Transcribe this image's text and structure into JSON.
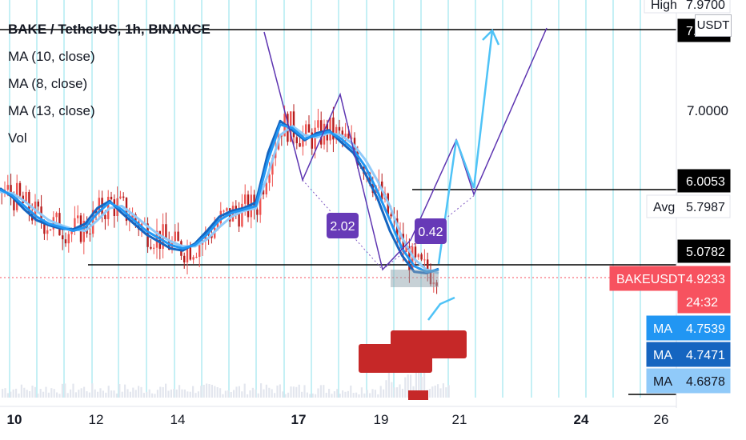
{
  "legend": {
    "title": "BAKE / TetherUS, 1h, BINANCE",
    "ma1": "MA (10, close)",
    "ma2": "MA (8, close)",
    "ma3": "MA (13, close)",
    "vol": "Vol"
  },
  "currency_label": "USDT",
  "chart_data": {
    "type": "line",
    "title": "BAKE / TetherUS, 1h, BINANCE",
    "x_tick_labels": [
      "10",
      "12",
      "14",
      "17",
      "19",
      "21",
      "24",
      "26"
    ],
    "y_tick_labels": [
      "7.0000"
    ],
    "ylim": [
      4.3,
      8.0
    ],
    "price_axis_labels": [
      {
        "name": "High",
        "value": "7.9700",
        "color": "#ffffff",
        "text_color": "#131722"
      },
      {
        "name": "",
        "value": "7.",
        "color": "#000000",
        "text_color": "#ffffff"
      },
      {
        "name": "",
        "value": "6.0053",
        "color": "#000000",
        "text_color": "#ffffff"
      },
      {
        "name": "Avg",
        "value": "5.7987",
        "color": "#ffffff",
        "text_color": "#131722"
      },
      {
        "name": "",
        "value": "5.0782",
        "color": "#000000",
        "text_color": "#ffffff"
      },
      {
        "name": "BAKEUSDT",
        "value": "4.9233",
        "color": "#f7525f",
        "text_color": "#ffffff"
      },
      {
        "name": "",
        "value": "24:32",
        "color": "#f7525f",
        "text_color": "#ffffff"
      },
      {
        "name": "MA",
        "value": "4.7539",
        "color": "#2196f3",
        "text_color": "#ffffff"
      },
      {
        "name": "MA",
        "value": "4.7471",
        "color": "#1565c0",
        "text_color": "#ffffff"
      },
      {
        "name": "MA",
        "value": "4.6878",
        "color": "#90caf9",
        "text_color": "#131722"
      }
    ],
    "pattern_labels": [
      "2.02",
      "0.42"
    ],
    "series": [
      {
        "name": "MA (10, close)",
        "color": "#2196f3",
        "values": [
          5.88,
          5.8,
          5.65,
          5.5,
          5.4,
          5.35,
          5.3,
          5.35,
          5.55,
          5.7,
          5.6,
          5.45,
          5.3,
          5.2,
          5.1,
          5.05,
          5.1,
          5.25,
          5.45,
          5.55,
          5.6,
          5.65,
          6.3,
          6.8,
          6.75,
          6.6,
          6.65,
          6.7,
          6.6,
          6.45,
          6.2,
          5.85,
          5.45,
          5.05,
          4.8,
          4.72,
          4.75
        ]
      },
      {
        "name": "MA (8, close)",
        "color": "#1565c0",
        "values": [
          5.9,
          5.78,
          5.6,
          5.45,
          5.38,
          5.33,
          5.32,
          5.4,
          5.62,
          5.72,
          5.55,
          5.4,
          5.25,
          5.15,
          5.05,
          5.02,
          5.12,
          5.3,
          5.5,
          5.58,
          5.62,
          5.7,
          6.4,
          6.85,
          6.72,
          6.58,
          6.68,
          6.72,
          6.55,
          6.4,
          6.1,
          5.75,
          5.3,
          4.95,
          4.72,
          4.7,
          4.76
        ]
      },
      {
        "name": "MA (13, close)",
        "color": "#90caf9",
        "values": [
          5.85,
          5.83,
          5.72,
          5.58,
          5.45,
          5.38,
          5.32,
          5.3,
          5.45,
          5.62,
          5.65,
          5.52,
          5.38,
          5.25,
          5.15,
          5.08,
          5.08,
          5.18,
          5.35,
          5.5,
          5.58,
          5.62,
          6.1,
          6.65,
          6.78,
          6.65,
          6.62,
          6.68,
          6.65,
          6.52,
          6.3,
          6.0,
          5.65,
          5.2,
          4.9,
          4.75,
          4.7
        ]
      }
    ]
  }
}
